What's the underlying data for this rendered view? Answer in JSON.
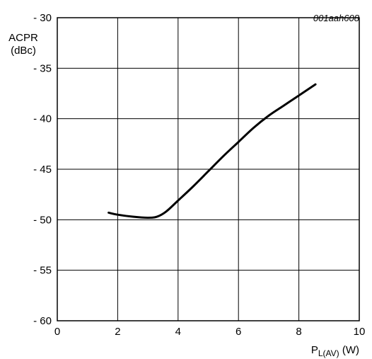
{
  "figure_code": "001aah608",
  "chart_data": {
    "type": "line",
    "title": "",
    "ylabel_line1": "ACPR",
    "ylabel_line2": "(dBc)",
    "xlabel_main": "P",
    "xlabel_sub": "L(AV)",
    "xlabel_unit": "(W)",
    "xlim": [
      0,
      10
    ],
    "ylim": [
      -60,
      -30
    ],
    "grid": true,
    "x_ticks": [
      0,
      2,
      4,
      6,
      8,
      10
    ],
    "x_tick_labels": [
      "0",
      "2",
      "4",
      "6",
      "8",
      "10"
    ],
    "y_ticks": [
      -30,
      -35,
      -40,
      -45,
      -50,
      -55,
      -60
    ],
    "y_tick_labels": [
      "- 30",
      "- 35",
      "- 40",
      "- 45",
      "- 50",
      "- 55",
      "- 60"
    ],
    "series": [
      {
        "x": [
          1.7,
          2.0,
          2.5,
          3.0,
          3.3,
          3.6,
          4.0,
          4.5,
          5.0,
          5.5,
          6.0,
          6.5,
          7.0,
          7.5,
          8.0,
          8.55
        ],
        "y": [
          -49.3,
          -49.5,
          -49.7,
          -49.8,
          -49.7,
          -49.2,
          -48.1,
          -46.7,
          -45.2,
          -43.7,
          -42.3,
          -40.9,
          -39.7,
          -38.7,
          -37.7,
          -36.6
        ]
      }
    ]
  }
}
